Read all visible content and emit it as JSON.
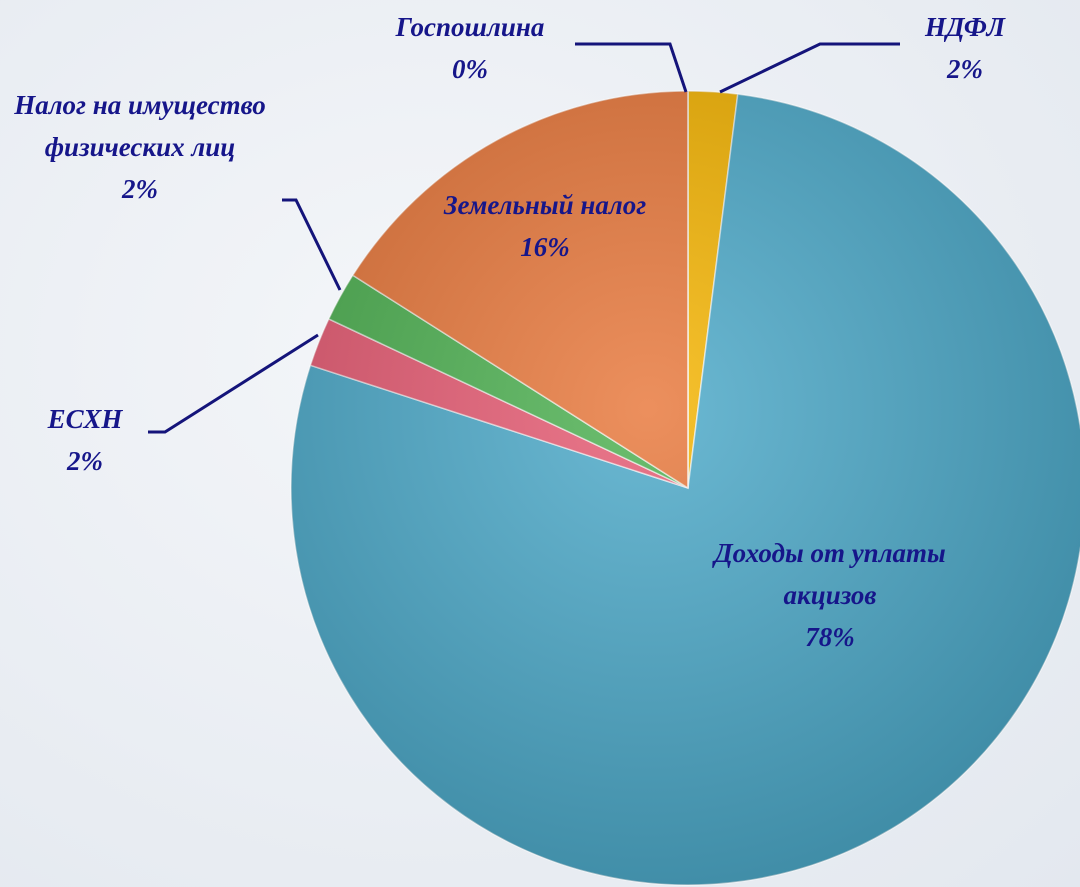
{
  "chart_data": {
    "type": "pie",
    "categories": [
      "НДФЛ",
      "Доходы от уплаты акцизов",
      "ЕСХН",
      "Налог на имущество физических лиц",
      "Земельный налог",
      "Госпошлина"
    ],
    "values": [
      2,
      78,
      2,
      2,
      16,
      0
    ],
    "value_labels": [
      "2%",
      "78%",
      "2%",
      "2%",
      "16%",
      "0%"
    ],
    "colors": [
      "#f5b400",
      "#4ba9c9",
      "#e65a72",
      "#4cb050",
      "#e8773a",
      "#4472c4"
    ]
  }
}
